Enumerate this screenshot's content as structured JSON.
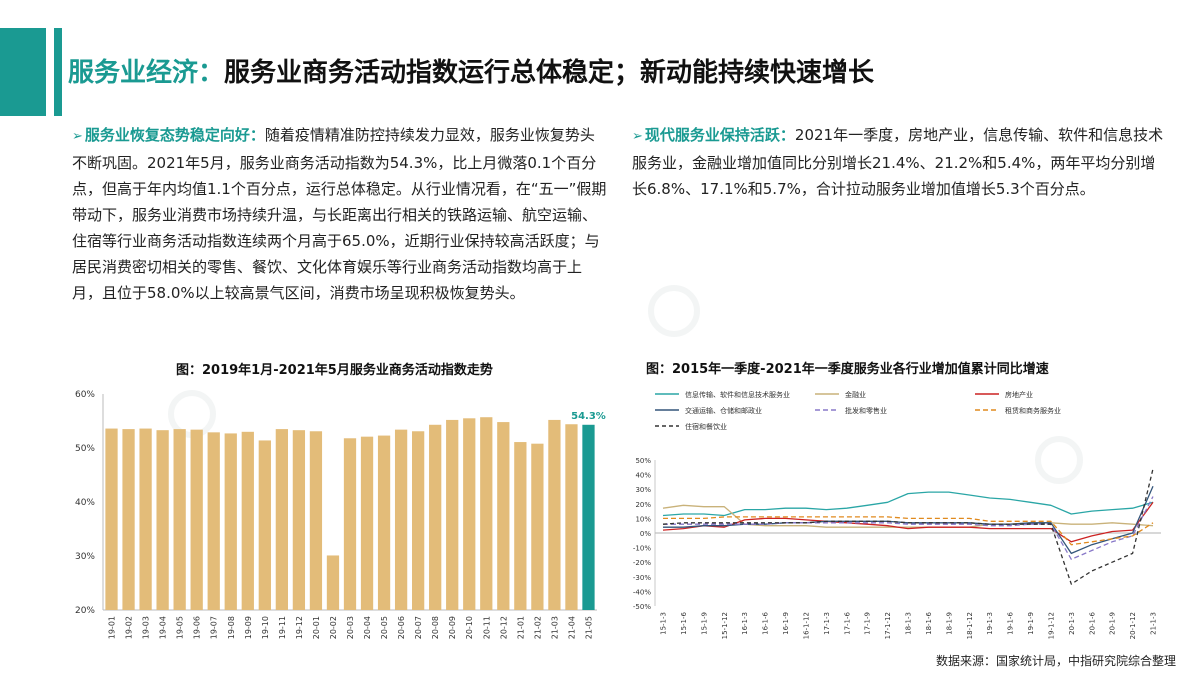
{
  "header": {
    "title_accent": "服务业经济：",
    "title_rest": "服务业商务活动指数运行总体稳定；新动能持续快速增长"
  },
  "left_para": {
    "heading": "服务业恢复态势稳定向好：",
    "body": "随着疫情精准防控持续发力显效，服务业恢复势头不断巩固。2021年5月，服务业商务活动指数为54.3%，比上月微落0.1个百分点，但高于年内均值1.1个百分点，运行总体稳定。从行业情况看，在“五一”假期带动下，服务业消费市场持续升温，与长距离出行相关的铁路运输、航空运输、住宿等行业商务活动指数连续两个月高于65.0%，近期行业保持较高活跃度；与居民消费密切相关的零售、餐饮、文化体育娱乐等行业商务活动指数均高于上月，且位于58.0%以上较高景气区间，消费市场呈现积极恢复势头。"
  },
  "right_para": {
    "heading": "现代服务业保持活跃：",
    "body": "2021年一季度，房地产业，信息传输、软件和信息技术服务业，金融业增加值同比分别增长21.4%、21.2%和5.4%，两年平均分别增长6.8%、17.1%和5.7%，合计拉动服务业增加值增长5.3个百分点。"
  },
  "figure1": {
    "title": "图：2019年1月-2021年5月服务业商务活动指数走势"
  },
  "figure2": {
    "title": "图：2015年一季度-2021年一季度服务业各行业增加值累计同比增速"
  },
  "source": "数据来源：国家统计局，中指研究院综合整理",
  "colors": {
    "accent": "#1a9a92",
    "bar": "#e3bc79",
    "bar_highlight": "#1a9a92"
  },
  "chart_data": [
    {
      "type": "bar",
      "categories": [
        "19-01",
        "19-02",
        "19-03",
        "19-04",
        "19-05",
        "19-06",
        "19-07",
        "19-08",
        "19-09",
        "19-10",
        "19-11",
        "19-12",
        "20-01",
        "20-02",
        "20-03",
        "20-04",
        "20-05",
        "20-06",
        "20-07",
        "20-08",
        "20-09",
        "20-10",
        "20-11",
        "20-12",
        "21-01",
        "21-02",
        "21-03",
        "21-04",
        "21-05"
      ],
      "values": [
        53.6,
        53.5,
        53.6,
        53.3,
        53.5,
        53.4,
        52.9,
        52.7,
        53.0,
        51.4,
        53.5,
        53.3,
        53.1,
        30.1,
        51.8,
        52.1,
        52.3,
        53.4,
        53.1,
        54.3,
        55.2,
        55.5,
        55.7,
        54.8,
        51.1,
        50.8,
        55.2,
        54.4,
        54.3
      ],
      "ylim": [
        20,
        60
      ],
      "yticks": [
        "20%",
        "30%",
        "40%",
        "50%",
        "60%"
      ],
      "highlight_label": "54.3%",
      "xlabel": "",
      "ylabel": ""
    },
    {
      "type": "line",
      "x": [
        "15-1-3",
        "15-1-6",
        "15-1-9",
        "15-1-12",
        "16-1-3",
        "16-1-6",
        "16-1-9",
        "16-1-12",
        "17-1-3",
        "17-1-6",
        "17-1-9",
        "17-1-12",
        "18-1-3",
        "18-1-6",
        "18-1-9",
        "18-1-12",
        "19-1-3",
        "19-1-6",
        "19-1-9",
        "19-1-12",
        "20-1-3",
        "20-1-6",
        "20-1-9",
        "20-1-12",
        "21-1-3"
      ],
      "ylim": [
        -50,
        50
      ],
      "yticks": [
        "-50%",
        "-40%",
        "-30%",
        "-20%",
        "-10%",
        "0%",
        "10%",
        "20%",
        "30%",
        "40%",
        "50%"
      ],
      "legend_placement": "top",
      "series": [
        {
          "name": "信息传输、软件和信息技术服务业",
          "color": "#2aa6a6",
          "dash": "",
          "values": [
            12,
            13,
            13,
            12,
            16,
            16,
            17,
            17,
            16,
            17,
            19,
            21,
            27,
            28,
            28,
            26,
            24,
            23,
            21,
            19,
            13,
            15,
            16,
            17,
            21
          ]
        },
        {
          "name": "金融业",
          "color": "#c9b27a",
          "dash": "",
          "values": [
            17,
            19,
            18,
            18,
            6,
            5,
            5,
            5,
            4,
            4,
            4,
            4,
            4,
            4,
            4,
            4,
            6,
            6,
            7,
            7,
            6,
            6,
            7,
            6,
            5
          ]
        },
        {
          "name": "房地产业",
          "color": "#cc2222",
          "dash": "",
          "values": [
            2,
            3,
            5,
            4,
            9,
            10,
            10,
            9,
            8,
            7,
            6,
            5,
            3,
            4,
            4,
            4,
            3,
            3,
            3,
            3,
            -6,
            -2,
            1,
            2,
            21
          ]
        },
        {
          "name": "交通运输、仓储和邮政业",
          "color": "#33557a",
          "dash": "",
          "values": [
            4,
            4,
            5,
            5,
            6,
            6,
            7,
            7,
            8,
            8,
            8,
            8,
            7,
            7,
            7,
            7,
            6,
            6,
            7,
            7,
            -14,
            -8,
            -4,
            0,
            32
          ]
        },
        {
          "name": "批发和零售业",
          "color": "#8878c8",
          "dash": "5,3",
          "values": [
            6,
            6,
            6,
            6,
            6,
            6,
            7,
            7,
            7,
            7,
            7,
            7,
            6,
            6,
            6,
            6,
            5,
            5,
            6,
            6,
            -18,
            -12,
            -6,
            -2,
            25
          ]
        },
        {
          "name": "租赁和商务服务业",
          "color": "#e08a1e",
          "dash": "5,3",
          "values": [
            10,
            10,
            10,
            11,
            11,
            11,
            11,
            11,
            11,
            11,
            11,
            11,
            10,
            10,
            10,
            10,
            8,
            8,
            8,
            8,
            -8,
            -6,
            -4,
            -2,
            7
          ]
        },
        {
          "name": "住宿和餐饮业",
          "color": "#333333",
          "dash": "4,3",
          "values": [
            6,
            7,
            7,
            7,
            7,
            7,
            7,
            7,
            8,
            8,
            8,
            8,
            7,
            7,
            7,
            7,
            6,
            6,
            6,
            6,
            -35,
            -26,
            -20,
            -14,
            44
          ]
        }
      ]
    }
  ]
}
